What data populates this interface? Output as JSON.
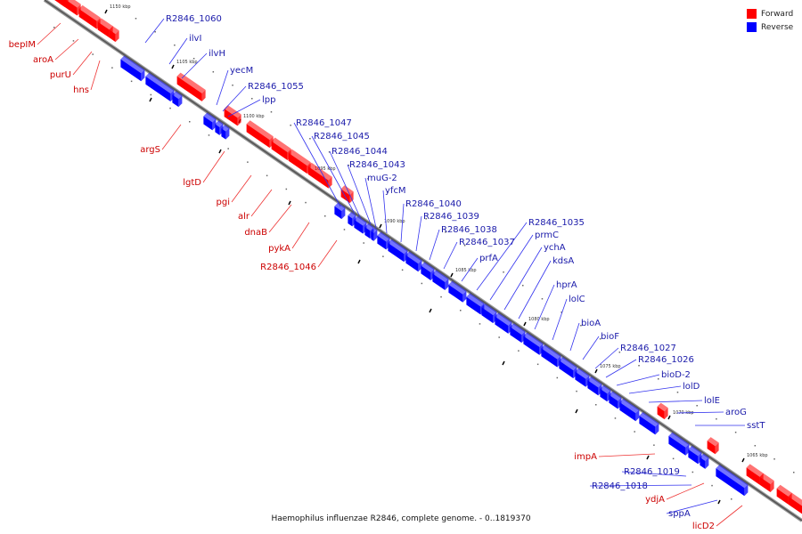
{
  "legend": [
    {
      "name": "Forward",
      "color": "#ff0000"
    },
    {
      "name": "Reverse",
      "color": "#0000ff"
    }
  ],
  "caption": "Haemophilus influenzae R2846, complete genome. - 0..1819370",
  "colors": {
    "forward": "#ff0000",
    "reverse": "#0000ff",
    "forward_label": "#cc0000",
    "reverse_label": "#1a1aaa"
  },
  "scale_labels": [
    "1110 kbp",
    "1105 kbp",
    "1100 kbp",
    "1095 kbp",
    "1090 kbp",
    "1085 kbp",
    "1080 kbp",
    "1075 kbp",
    "1070 kbp",
    "1065 kbp"
  ],
  "forward_genes": [
    "bepIM",
    "aroA",
    "purU",
    "hns",
    "argS",
    "lgtD",
    "pgi",
    "alr",
    "dnaB",
    "pykA",
    "R2846_1046",
    "impA",
    "ydjA",
    "licD2"
  ],
  "reverse_genes": [
    "R2846_1060",
    "ilvI",
    "ilvH",
    "yecM",
    "R2846_1055",
    "lpp",
    "R2846_1047",
    "R2846_1045",
    "R2846_1044",
    "R2846_1043",
    "muG-2",
    "yfcM",
    "R2846_1040",
    "R2846_1039",
    "R2846_1038",
    "R2846_1037",
    "prfA",
    "R2846_1035",
    "prmC",
    "ychA",
    "kdsA",
    "hprA",
    "lolC",
    "bioA",
    "bioF",
    "R2846_1027",
    "R2846_1026",
    "bioD-2",
    "lolD",
    "lolE",
    "aroG",
    "sstT",
    "R2846_1019",
    "R2846_1018",
    "sppA"
  ]
}
